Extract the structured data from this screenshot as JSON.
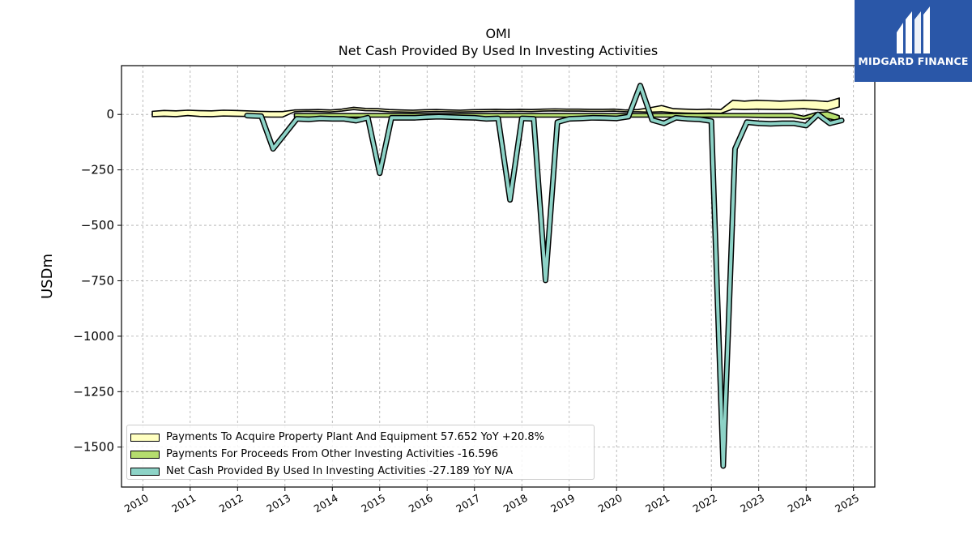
{
  "brand": {
    "name": "MIDGARD FINANCE",
    "logo_color": "#2a57a8"
  },
  "chart_data": {
    "type": "area",
    "title": "OMI",
    "subtitle": "Net Cash Provided By Used In Investing Activities",
    "ylabel": "USDm",
    "xlabel": "",
    "ylim": [
      -1680,
      220
    ],
    "xlim": [
      2009.55,
      2025.45
    ],
    "yticks": [
      0,
      -250,
      -500,
      -750,
      -1000,
      -1250,
      -1500
    ],
    "ytick_labels": [
      "0",
      "−250",
      "−500",
      "−750",
      "−1000",
      "−1250",
      "−1500"
    ],
    "xticks": [
      2010,
      2011,
      2012,
      2013,
      2014,
      2015,
      2016,
      2017,
      2018,
      2019,
      2020,
      2021,
      2022,
      2023,
      2024,
      2025
    ],
    "xtick_labels": [
      "2010",
      "2011",
      "2012",
      "2013",
      "2014",
      "2015",
      "2016",
      "2017",
      "2018",
      "2019",
      "2020",
      "2021",
      "2022",
      "2023",
      "2024",
      "2025"
    ],
    "grid": true,
    "legend_position": "lower-left",
    "series": [
      {
        "name": "Payments To Acquire Property Plant And Equipment",
        "legend_label": "Payments To Acquire Property Plant And Equipment  57.652 YoY +20.8%",
        "color": "#ffffc0",
        "style": "band",
        "x": [
          2010.2,
          2010.45,
          2010.7,
          2010.95,
          2011.2,
          2011.45,
          2011.7,
          2011.95,
          2012.2,
          2012.45,
          2012.7,
          2012.95,
          2013.2,
          2013.45,
          2013.7,
          2013.95,
          2014.2,
          2014.45,
          2014.7,
          2014.95,
          2015.2,
          2015.45,
          2015.7,
          2015.95,
          2016.2,
          2016.45,
          2016.7,
          2016.95,
          2017.2,
          2017.45,
          2017.7,
          2017.95,
          2018.2,
          2018.45,
          2018.7,
          2018.95,
          2019.2,
          2019.45,
          2019.7,
          2019.95,
          2020.2,
          2020.45,
          2020.7,
          2020.95,
          2021.2,
          2021.45,
          2021.7,
          2021.95,
          2022.2,
          2022.45,
          2022.7,
          2022.95,
          2023.2,
          2023.45,
          2023.7,
          2023.95,
          2024.2,
          2024.45,
          2024.7
        ],
        "values": [
          2,
          5,
          3,
          7,
          4,
          3,
          6,
          5,
          3,
          2,
          1,
          1,
          3,
          4,
          5,
          3,
          6,
          12,
          8,
          7,
          5,
          4,
          3,
          4,
          5,
          4,
          3,
          4,
          5,
          6,
          5,
          6,
          5,
          6,
          7,
          6,
          6,
          5,
          5,
          6,
          5,
          8,
          15,
          25,
          12,
          10,
          8,
          9,
          8,
          45,
          42,
          45,
          44,
          42,
          43,
          45,
          42,
          38,
          57.652
        ],
        "lower": [
          -10,
          -8,
          -10,
          -5,
          -9,
          -10,
          -7,
          -8,
          -9,
          -11,
          -12,
          -12,
          12,
          14,
          13,
          11,
          15,
          22,
          17,
          16,
          12,
          11,
          10,
          12,
          13,
          12,
          11,
          12,
          13,
          14,
          13,
          14,
          13,
          15,
          16,
          15,
          15,
          14,
          14,
          15,
          12,
          12,
          10,
          12,
          8,
          6,
          5,
          6,
          5,
          24,
          22,
          24,
          23,
          22,
          24,
          26,
          22,
          18,
          34
        ],
        "upper": [
          14,
          18,
          16,
          19,
          17,
          16,
          19,
          18,
          16,
          14,
          13,
          13,
          20,
          21,
          22,
          20,
          24,
          32,
          27,
          26,
          22,
          20,
          19,
          21,
          22,
          20,
          19,
          21,
          22,
          23,
          22,
          23,
          22,
          24,
          25,
          24,
          24,
          23,
          23,
          24,
          20,
          22,
          30,
          40,
          26,
          24,
          22,
          24,
          22,
          64,
          60,
          64,
          62,
          60,
          62,
          64,
          62,
          58,
          74
        ]
      },
      {
        "name": "Payments For Proceeds From Other Investing Activities",
        "legend_label": "Payments For Proceeds From Other Investing Activities  -16.596",
        "color": "#b5dd6e",
        "style": "band",
        "x": [
          2013.2,
          2013.7,
          2014.2,
          2014.7,
          2015.2,
          2015.7,
          2016.2,
          2016.7,
          2017.2,
          2017.7,
          2018.2,
          2018.7,
          2019.2,
          2019.7,
          2020.2,
          2020.45,
          2020.7,
          2020.95,
          2021.2,
          2021.7,
          2022.2,
          2022.7,
          2023.2,
          2023.7,
          2023.95,
          2024.2,
          2024.45,
          2024.7
        ],
        "values": [
          -5,
          -5,
          -5,
          -5,
          -5,
          -5,
          -5,
          -5,
          -5,
          -5,
          -5,
          -5,
          -5,
          -5,
          -5,
          -5,
          -5,
          -5,
          -5,
          -5,
          -5,
          -5,
          -5,
          -5,
          -15,
          -5,
          -10,
          -16.596
        ],
        "lower": [
          -12,
          -12,
          -12,
          -12,
          -12,
          -12,
          -12,
          -12,
          -12,
          -12,
          -12,
          -12,
          -12,
          -12,
          -12,
          -12,
          -12,
          -12,
          -12,
          -12,
          -12,
          -12,
          -14,
          -14,
          -22,
          -10,
          -18,
          -30
        ],
        "upper": [
          4,
          4,
          4,
          4,
          4,
          4,
          4,
          4,
          4,
          4,
          4,
          4,
          4,
          4,
          4,
          4,
          4,
          4,
          4,
          4,
          4,
          4,
          4,
          4,
          -8,
          8,
          12,
          -6
        ]
      },
      {
        "name": "Net Cash Provided By Used In Investing Activities",
        "legend_label": "Net Cash Provided By Used In Investing Activities  -27.189 YoY N/A",
        "color": "#8dd3c7",
        "style": "line",
        "x": [
          2012.2,
          2012.5,
          2012.75,
          2013.25,
          2013.5,
          2013.75,
          2014.0,
          2014.25,
          2014.5,
          2014.75,
          2015.0,
          2015.25,
          2015.5,
          2015.75,
          2016.0,
          2016.25,
          2016.5,
          2016.75,
          2017.0,
          2017.25,
          2017.5,
          2017.75,
          2018.0,
          2018.25,
          2018.5,
          2018.75,
          2019.0,
          2019.25,
          2019.5,
          2019.75,
          2020.0,
          2020.25,
          2020.5,
          2020.75,
          2021.0,
          2021.25,
          2021.5,
          2021.75,
          2022.0,
          2022.25,
          2022.5,
          2022.75,
          2023.0,
          2023.25,
          2023.5,
          2023.75,
          2024.0,
          2024.25,
          2024.5,
          2024.75
        ],
        "values": [
          -5,
          -8,
          -155,
          -20,
          -22,
          -18,
          -20,
          -20,
          -28,
          -15,
          -265,
          -15,
          -15,
          -15,
          -12,
          -10,
          -12,
          -14,
          -15,
          -20,
          -18,
          -385,
          -18,
          -20,
          -748,
          -35,
          -20,
          -18,
          -15,
          -16,
          -18,
          -10,
          130,
          -25,
          -40,
          -15,
          -20,
          -22,
          -30,
          -1585,
          -155,
          -35,
          -40,
          -42,
          -40,
          -40,
          -50,
          0,
          -40,
          -27.189
        ]
      }
    ]
  }
}
